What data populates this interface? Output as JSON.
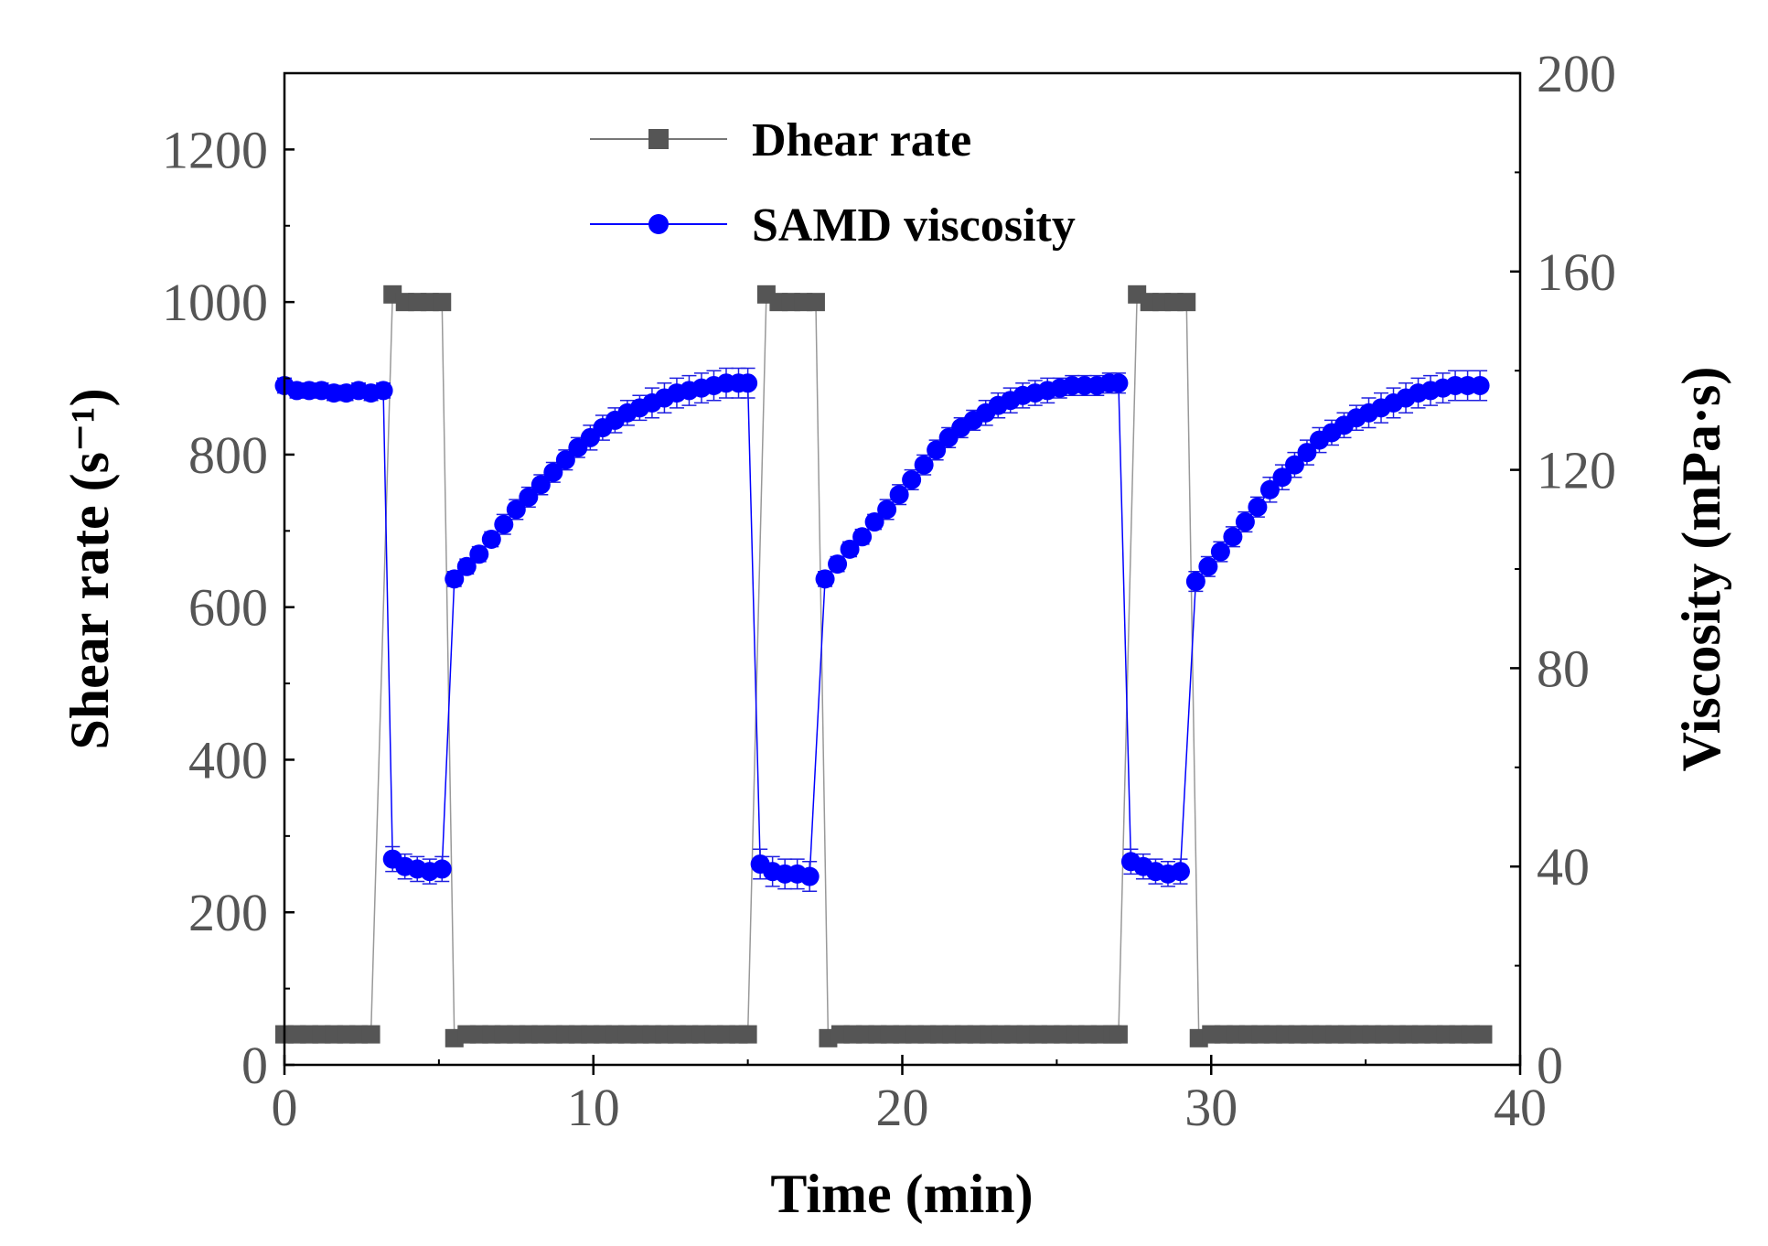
{
  "chart_data": {
    "type": "line",
    "title": "",
    "xlabel": "Time (min)",
    "ylabel_left": "Shear rate (s⁻¹)",
    "ylabel_right": "Viscosity (mPa·s)",
    "xlim": [
      0,
      40
    ],
    "ylim_left": [
      0,
      1300
    ],
    "ylim_right": [
      0,
      200
    ],
    "x_ticks": [
      "0",
      "10",
      "20",
      "30",
      "40"
    ],
    "y_left_ticks": [
      "0",
      "200",
      "400",
      "600",
      "800",
      "1000",
      "1200"
    ],
    "y_right_ticks": [
      "0",
      "40",
      "80",
      "120",
      "160",
      "200"
    ],
    "grid": false,
    "legend_position": "top-center",
    "colors": {
      "shear": "#555555",
      "viscosity": "#0000ff",
      "errorbar": "#2020e0"
    },
    "series": [
      {
        "name": "Dhear rate",
        "axis": "left",
        "marker": "square",
        "x": [
          0.0,
          0.4,
          0.8,
          1.2,
          1.6,
          2.0,
          2.4,
          2.8,
          3.5,
          3.9,
          4.3,
          4.7,
          5.1,
          5.5,
          5.9,
          6.3,
          6.7,
          7.1,
          7.5,
          7.9,
          8.3,
          8.7,
          9.1,
          9.5,
          9.9,
          10.3,
          10.7,
          11.1,
          11.5,
          11.9,
          12.3,
          12.7,
          13.1,
          13.5,
          13.9,
          14.3,
          14.7,
          15.0,
          15.6,
          16.0,
          16.4,
          16.8,
          17.2,
          17.6,
          18.0,
          18.4,
          18.8,
          19.2,
          19.6,
          20.0,
          20.4,
          20.8,
          21.2,
          21.6,
          22.0,
          22.4,
          22.8,
          23.2,
          23.6,
          24.0,
          24.4,
          24.8,
          25.2,
          25.6,
          26.0,
          26.4,
          26.8,
          27.0,
          27.6,
          28.0,
          28.4,
          28.8,
          29.2,
          29.6,
          30.0,
          30.4,
          30.8,
          31.2,
          31.6,
          32.0,
          32.4,
          32.8,
          33.2,
          33.6,
          34.0,
          34.4,
          34.8,
          35.2,
          35.6,
          36.0,
          36.4,
          36.8,
          37.2,
          37.6,
          38.0,
          38.4,
          38.8
        ],
        "y": [
          40,
          40,
          40,
          40,
          40,
          40,
          40,
          40,
          1010,
          1000,
          1000,
          1000,
          1000,
          35,
          40,
          40,
          40,
          40,
          40,
          40,
          40,
          40,
          40,
          40,
          40,
          40,
          40,
          40,
          40,
          40,
          40,
          40,
          40,
          40,
          40,
          40,
          40,
          40,
          1010,
          1000,
          1000,
          1000,
          1000,
          35,
          40,
          40,
          40,
          40,
          40,
          40,
          40,
          40,
          40,
          40,
          40,
          40,
          40,
          40,
          40,
          40,
          40,
          40,
          40,
          40,
          40,
          40,
          40,
          40,
          1010,
          1000,
          1000,
          1000,
          1000,
          35,
          40,
          40,
          40,
          40,
          40,
          40,
          40,
          40,
          40,
          40,
          40,
          40,
          40,
          40,
          40,
          40,
          40,
          40,
          40,
          40,
          40,
          40,
          40
        ]
      },
      {
        "name": "SAMD viscosity",
        "axis": "right",
        "marker": "circle",
        "x": [
          0.0,
          0.4,
          0.8,
          1.2,
          1.6,
          2.0,
          2.4,
          2.8,
          3.2,
          3.5,
          3.9,
          4.3,
          4.7,
          5.1,
          5.5,
          5.9,
          6.3,
          6.7,
          7.1,
          7.5,
          7.9,
          8.3,
          8.7,
          9.1,
          9.5,
          9.9,
          10.3,
          10.7,
          11.1,
          11.5,
          11.9,
          12.3,
          12.7,
          13.1,
          13.5,
          13.9,
          14.3,
          14.7,
          15.0,
          15.4,
          15.8,
          16.2,
          16.6,
          17.0,
          17.5,
          17.9,
          18.3,
          18.7,
          19.1,
          19.5,
          19.9,
          20.3,
          20.7,
          21.1,
          21.5,
          21.9,
          22.3,
          22.7,
          23.1,
          23.5,
          23.9,
          24.3,
          24.7,
          25.1,
          25.5,
          25.9,
          26.3,
          26.7,
          27.0,
          27.4,
          27.8,
          28.2,
          28.6,
          29.0,
          29.5,
          29.9,
          30.3,
          30.7,
          31.1,
          31.5,
          31.9,
          32.3,
          32.7,
          33.1,
          33.5,
          33.9,
          34.3,
          34.7,
          35.1,
          35.5,
          35.9,
          36.3,
          36.7,
          37.1,
          37.5,
          37.9,
          38.3,
          38.7
        ],
        "y": [
          137,
          136,
          136,
          136,
          135.5,
          135.5,
          136,
          135.5,
          136,
          41.5,
          40,
          39.5,
          39,
          39.5,
          98,
          100.5,
          103,
          106,
          109,
          112,
          114.5,
          117,
          119.5,
          122,
          124.5,
          126.5,
          128.5,
          130,
          131.5,
          132.5,
          133.5,
          134.5,
          135.5,
          136,
          136.5,
          137,
          137.5,
          137.5,
          137.5,
          40.5,
          39,
          38.5,
          38.5,
          38,
          98,
          101,
          104,
          106.5,
          109.5,
          112,
          115,
          118,
          121,
          124,
          126.5,
          128.5,
          130,
          131.5,
          133,
          134,
          135,
          135.5,
          136,
          136.5,
          137,
          137,
          137,
          137.5,
          137.5,
          41,
          40,
          39,
          38.5,
          39,
          97.5,
          100.5,
          103.5,
          106.5,
          109.5,
          112.5,
          116,
          118.5,
          121,
          123.5,
          126,
          127.5,
          129,
          130.5,
          131.5,
          132.5,
          133.5,
          134.5,
          135.5,
          136,
          136.5,
          137,
          137,
          137
        ],
        "error": [
          1.5,
          1.5,
          1.5,
          1.5,
          1.5,
          1.5,
          1.5,
          1.5,
          1.5,
          2.5,
          2.5,
          2.5,
          2.5,
          2.5,
          1.5,
          1.5,
          1.5,
          1.5,
          2,
          2,
          2,
          2,
          2,
          2,
          2,
          2.5,
          2.5,
          2.5,
          2.5,
          2.5,
          3,
          3,
          3,
          3,
          3,
          3,
          3,
          3,
          3,
          3,
          3,
          3,
          3,
          3,
          1.5,
          1.5,
          1.5,
          1.5,
          1.5,
          2,
          2,
          2,
          2,
          2,
          2,
          2,
          2,
          2.5,
          2.5,
          2.5,
          2.5,
          2.5,
          2.5,
          2,
          2,
          2,
          2,
          2,
          2,
          2.5,
          2.5,
          2.5,
          2.5,
          2.5,
          2,
          2,
          2,
          2,
          2,
          2,
          2.5,
          2.5,
          2.5,
          2.5,
          2.5,
          2.5,
          2.5,
          2.5,
          3,
          3,
          3,
          3,
          3,
          3,
          3,
          3,
          3,
          3
        ]
      }
    ]
  }
}
